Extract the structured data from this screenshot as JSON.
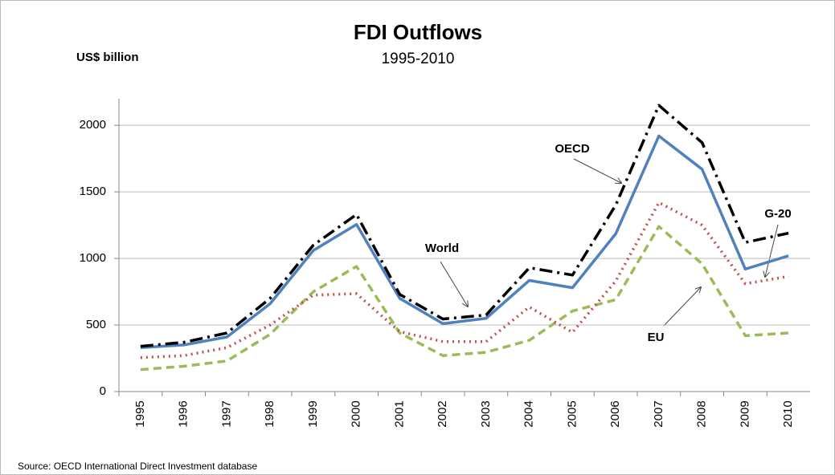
{
  "chart_data": {
    "type": "line",
    "title": "FDI Outflows",
    "subtitle": "1995-2010",
    "y_label": "US$ billion",
    "source": "Source: OECD International Direct Investment database",
    "categories": [
      "1995",
      "1996",
      "1997",
      "1998",
      "1999",
      "2000",
      "2001",
      "2002",
      "2003",
      "2004",
      "2005",
      "2006",
      "2007",
      "2008",
      "2009",
      "2010"
    ],
    "series": [
      {
        "name": "World",
        "color": "#000000",
        "dash": "16 6 3 6",
        "values": [
          340,
          370,
          440,
          700,
          1100,
          1330,
          730,
          545,
          575,
          930,
          875,
          1400,
          2150,
          1870,
          1120,
          1190
        ]
      },
      {
        "name": "OECD",
        "color": "#4f81bd",
        "dash": "none",
        "values": [
          330,
          350,
          410,
          660,
          1060,
          1255,
          700,
          510,
          550,
          835,
          780,
          1185,
          1920,
          1670,
          920,
          1020
        ]
      },
      {
        "name": "G-20",
        "color": "#c0504d",
        "dash": "2 5",
        "values": [
          255,
          270,
          330,
          500,
          725,
          735,
          450,
          375,
          375,
          635,
          445,
          830,
          1420,
          1250,
          810,
          865
        ]
      },
      {
        "name": "EU",
        "color": "#9bbb59",
        "dash": "10 6",
        "values": [
          165,
          190,
          230,
          430,
          750,
          940,
          440,
          270,
          295,
          385,
          605,
          690,
          1240,
          960,
          420,
          440
        ]
      }
    ],
    "ylim": [
      0,
      2200
    ],
    "yticks": [
      0,
      500,
      1000,
      1500,
      2000
    ],
    "grid": true
  }
}
